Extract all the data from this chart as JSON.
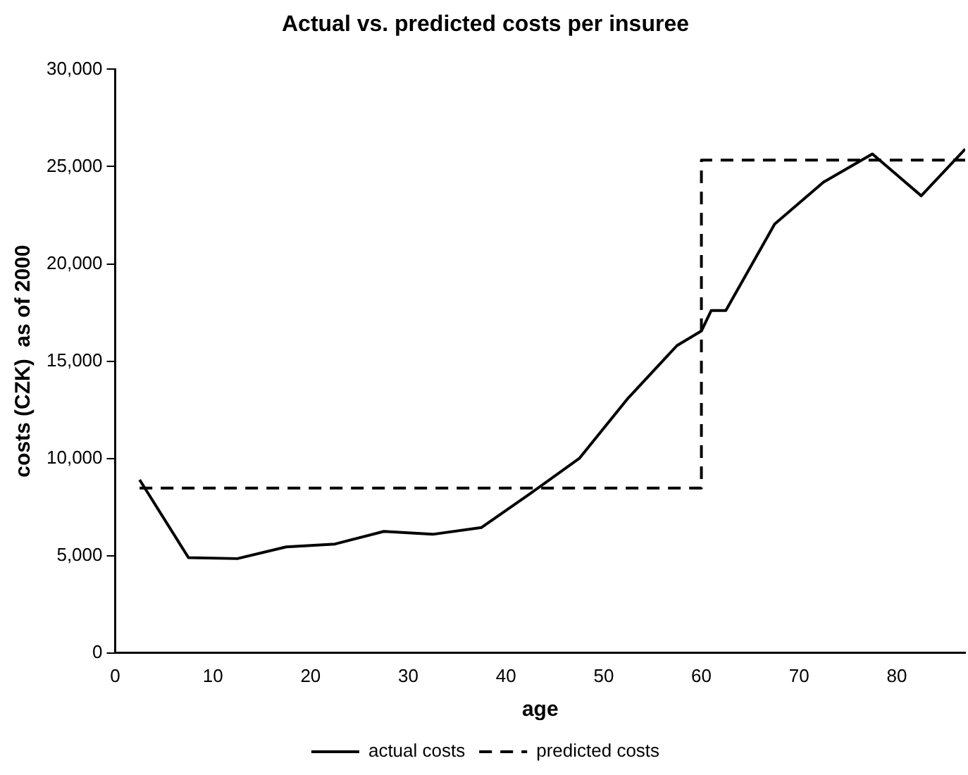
{
  "chart_data": {
    "type": "line",
    "title": "Actual vs. predicted costs per insuree",
    "xlabel": "age",
    "ylabel": "costs (CZK)  as of 2000",
    "xlim": [
      0,
      87
    ],
    "xticks": [
      0,
      10,
      20,
      30,
      40,
      50,
      60,
      70,
      80
    ],
    "ylim": [
      0,
      30000
    ],
    "yticks": [
      {
        "value": 0,
        "label": "0"
      },
      {
        "value": 5000,
        "label": "5,000"
      },
      {
        "value": 10000,
        "label": "10,000"
      },
      {
        "value": 15000,
        "label": "15,000"
      },
      {
        "value": 20000,
        "label": "20,000"
      },
      {
        "value": 25000,
        "label": "25,000"
      },
      {
        "value": 30000,
        "label": "30,000"
      }
    ],
    "series": [
      {
        "name": "actual costs",
        "color": "#000000",
        "line_style": "solid",
        "x": [
          2.5,
          7.5,
          12.5,
          17.5,
          22.5,
          27.5,
          32.5,
          37.5,
          42.5,
          47.5,
          52.5,
          57.5,
          60,
          61,
          62.5,
          67.5,
          72.5,
          77.5,
          82.5,
          87
        ],
        "values": [
          8900,
          4900,
          4850,
          5450,
          5600,
          6250,
          6100,
          6450,
          8200,
          10000,
          13100,
          15800,
          16550,
          17600,
          17600,
          22050,
          24200,
          25650,
          23500,
          25900
        ]
      },
      {
        "name": "predicted costs",
        "color": "#000000",
        "line_style": "dashed",
        "x": [
          2.5,
          60,
          60,
          87
        ],
        "values": [
          8480,
          8480,
          25330,
          25330
        ]
      }
    ],
    "grid": false,
    "legend": "bottom",
    "marker": "none"
  }
}
